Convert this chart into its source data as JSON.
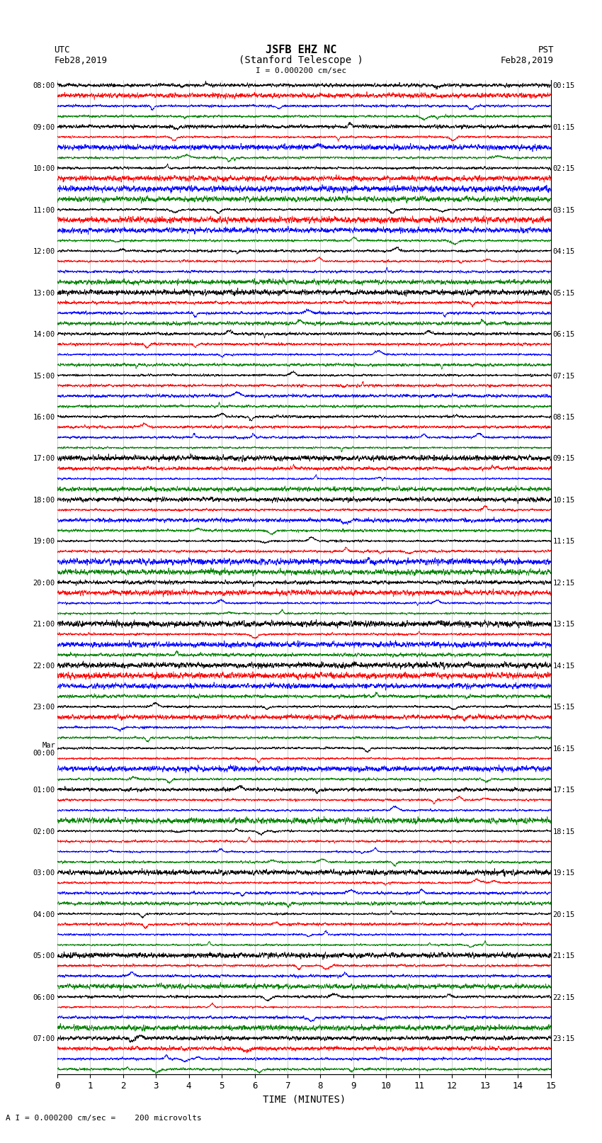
{
  "title_line1": "JSFB EHZ NC",
  "title_line2": "(Stanford Telescope )",
  "scale_label": "I = 0.000200 cm/sec",
  "bottom_label": "A I = 0.000200 cm/sec =    200 microvolts",
  "utc_label_line1": "UTC",
  "utc_label_line2": "Feb28,2019",
  "pst_label_line1": "PST",
  "pst_label_line2": "Feb28,2019",
  "xlabel": "TIME (MINUTES)",
  "utc_times": [
    "08:00",
    "09:00",
    "10:00",
    "11:00",
    "12:00",
    "13:00",
    "14:00",
    "15:00",
    "16:00",
    "17:00",
    "18:00",
    "19:00",
    "20:00",
    "21:00",
    "22:00",
    "23:00",
    "Mar\n00:00",
    "01:00",
    "02:00",
    "03:00",
    "04:00",
    "05:00",
    "06:00",
    "07:00"
  ],
  "pst_times": [
    "00:15",
    "01:15",
    "02:15",
    "03:15",
    "04:15",
    "05:15",
    "06:15",
    "07:15",
    "08:15",
    "09:15",
    "10:15",
    "11:15",
    "12:15",
    "13:15",
    "14:15",
    "15:15",
    "16:15",
    "17:15",
    "18:15",
    "19:15",
    "20:15",
    "21:15",
    "22:15",
    "23:15"
  ],
  "n_rows": 24,
  "n_traces_per_row": 4,
  "colors": [
    "black",
    "red",
    "blue",
    "green"
  ],
  "n_points": 4500,
  "fig_width": 8.5,
  "fig_height": 16.13,
  "dpi": 100,
  "bg_color": "white",
  "trace_amplitude": 0.42,
  "xmin": 0,
  "xmax": 15
}
